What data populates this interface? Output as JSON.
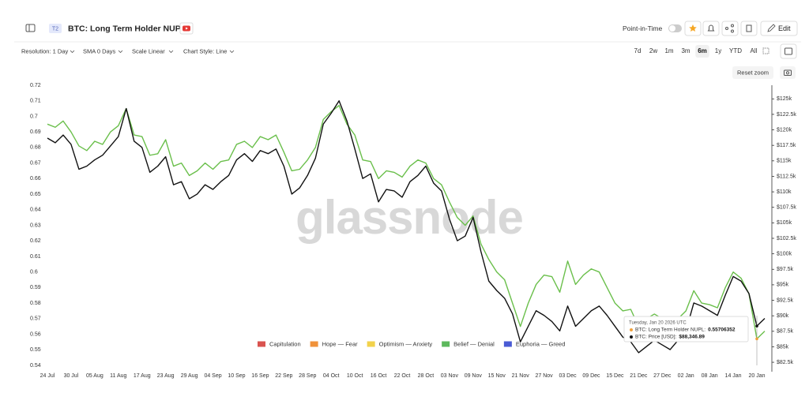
{
  "header": {
    "badge": "T2",
    "title": "BTC: Long Term Holder NUPL",
    "point_in_time": "Point-in-Time",
    "edit": "Edit"
  },
  "toolbar": {
    "options": [
      "Resolution: 1 Day",
      "SMA 0 Days",
      "Scale Linear",
      "Chart Style: Line"
    ],
    "ranges": [
      "7d",
      "2w",
      "1m",
      "3m",
      "6m",
      "1y",
      "YTD",
      "All"
    ],
    "selected_range": 4,
    "reset_zoom": "Reset zoom"
  },
  "chart_data": {
    "type": "line",
    "watermark": "glassnode",
    "categories": [
      "24 Jul",
      null,
      null,
      "30 Jul",
      null,
      null,
      "05 Aug",
      null,
      null,
      "11 Aug",
      null,
      null,
      "17 Aug",
      null,
      null,
      "23 Aug",
      null,
      null,
      "29 Aug",
      null,
      null,
      "04 Sep",
      null,
      null,
      "10 Sep",
      null,
      null,
      "16 Sep",
      null,
      null,
      "22 Sep",
      null,
      null,
      "28 Sep",
      null,
      null,
      "04 Oct",
      null,
      null,
      "10 Oct",
      null,
      null,
      "16 Oct",
      null,
      null,
      "22 Oct",
      null,
      null,
      "28 Oct",
      null,
      null,
      "03 Nov",
      null,
      null,
      "09 Nov",
      null,
      null,
      "15 Nov",
      null,
      null,
      "21 Nov",
      null,
      null,
      "27 Nov",
      null,
      null,
      "03 Dec",
      null,
      null,
      "09 Dec",
      null,
      null,
      "15 Dec",
      null,
      null,
      "21 Dec",
      null,
      null,
      "27 Dec",
      null,
      null,
      "02 Jan",
      null,
      null,
      "08 Jan",
      null,
      null,
      "14 Jan",
      null,
      null,
      "20 Jan",
      null
    ],
    "series": [
      {
        "color": "#6abf4b",
        "values": [
          0.695,
          0.693,
          0.697,
          0.69,
          0.681,
          0.678,
          0.684,
          0.682,
          0.69,
          0.694,
          0.705,
          0.688,
          0.687,
          0.675,
          0.676,
          0.685,
          0.668,
          0.67,
          0.662,
          0.665,
          0.67,
          0.666,
          0.671,
          0.672,
          0.682,
          0.684,
          0.68,
          0.687,
          0.685,
          0.688,
          0.677,
          0.665,
          0.666,
          0.672,
          0.68,
          0.698,
          0.703,
          0.707,
          0.695,
          0.688,
          0.672,
          0.671,
          0.66,
          0.665,
          0.664,
          0.661,
          0.668,
          0.672,
          0.67,
          0.66,
          0.656,
          0.645,
          0.635,
          0.63,
          0.636,
          0.618,
          0.608,
          0.6,
          0.595,
          0.58,
          0.565,
          0.58,
          0.592,
          0.598,
          0.597,
          0.587,
          0.607,
          0.592,
          0.598,
          0.602,
          0.6,
          0.59,
          0.58,
          0.575,
          0.576,
          0.565,
          0.57,
          0.573,
          0.57,
          0.566,
          0.57,
          0.575,
          0.588,
          0.58,
          0.579,
          0.577,
          0.59,
          0.6,
          0.596,
          0.586,
          0.55706352,
          0.562
        ]
      },
      {
        "color": "#111111",
        "axis": "y2",
        "values": [
          118670,
          117920,
          119170,
          117660,
          113650,
          114150,
          115160,
          115910,
          117410,
          118920,
          123440,
          118170,
          117160,
          113150,
          114150,
          115660,
          111140,
          111640,
          108880,
          109640,
          111140,
          110390,
          111640,
          112650,
          115160,
          116160,
          114910,
          116660,
          116160,
          116910,
          114150,
          109640,
          110640,
          112650,
          115410,
          120930,
          122680,
          124690,
          121430,
          116910,
          112150,
          112900,
          108380,
          110390,
          110140,
          109130,
          111640,
          112650,
          114150,
          111390,
          110140,
          105620,
          102110,
          102860,
          105870,
          100350,
          95590,
          94080,
          92830,
          90320,
          85800,
          88310,
          90820,
          90070,
          89070,
          87560,
          91570,
          88310,
          89560,
          90820,
          91570,
          90070,
          88310,
          86560,
          85800,
          84050,
          85050,
          86050,
          85300,
          84550,
          86050,
          87560,
          92070,
          91570,
          90820,
          90070,
          93330,
          96340,
          95590,
          93580,
          88346.89,
          89570
        ]
      }
    ],
    "ylim": [
      0.54,
      0.72
    ],
    "yticks": [
      0.54,
      0.55,
      0.56,
      0.57,
      0.58,
      0.59,
      0.6,
      0.61,
      0.62,
      0.63,
      0.64,
      0.65,
      0.66,
      0.67,
      0.68,
      0.69,
      0.7,
      0.71,
      0.72
    ],
    "y2lim": [
      82000,
      127200
    ],
    "y2ticks": [
      {
        "value": 82500,
        "label": "$82.5k"
      },
      {
        "value": 85000,
        "label": "$85k"
      },
      {
        "value": 87500,
        "label": "$87.5k"
      },
      {
        "value": 90000,
        "label": "$90k"
      },
      {
        "value": 92500,
        "label": "$92.5k"
      },
      {
        "value": 95000,
        "label": "$95k"
      },
      {
        "value": 97500,
        "label": "$97.5k"
      },
      {
        "value": 100000,
        "label": "$100k"
      },
      {
        "value": 102500,
        "label": "$102.5k"
      },
      {
        "value": 105000,
        "label": "$105k"
      },
      {
        "value": 107500,
        "label": "$107.5k"
      },
      {
        "value": 110000,
        "label": "$110k"
      },
      {
        "value": 112500,
        "label": "$112.5k"
      },
      {
        "value": 115000,
        "label": "$115k"
      },
      {
        "value": 117500,
        "label": "$117.5k"
      },
      {
        "value": 120000,
        "label": "$120k"
      },
      {
        "value": 122500,
        "label": "$122.5k"
      },
      {
        "value": 125000,
        "label": "$125k"
      }
    ],
    "grid": false,
    "legend": [
      {
        "name": "Capitulation",
        "color": "#d9534f"
      },
      {
        "name": "Hope — Fear",
        "color": "#f0923a"
      },
      {
        "name": "Optimism — Anxiety",
        "color": "#f2d24b"
      },
      {
        "name": "Belief — Denial",
        "color": "#5cb85c"
      },
      {
        "name": "Euphoria — Greed",
        "color": "#4a5bd4"
      }
    ],
    "tooltip": {
      "title": "Tuesday, Jan 20 2026 UTC",
      "index": 90,
      "rows": [
        {
          "label": "BTC: Long Term Holder NUPL:",
          "value": 0.55706352,
          "color": "#f0a03a"
        },
        {
          "label": "BTC: Price [USD]:",
          "value": 88346.89,
          "value_label": "$88,346.89",
          "color": "#111111"
        }
      ]
    }
  }
}
